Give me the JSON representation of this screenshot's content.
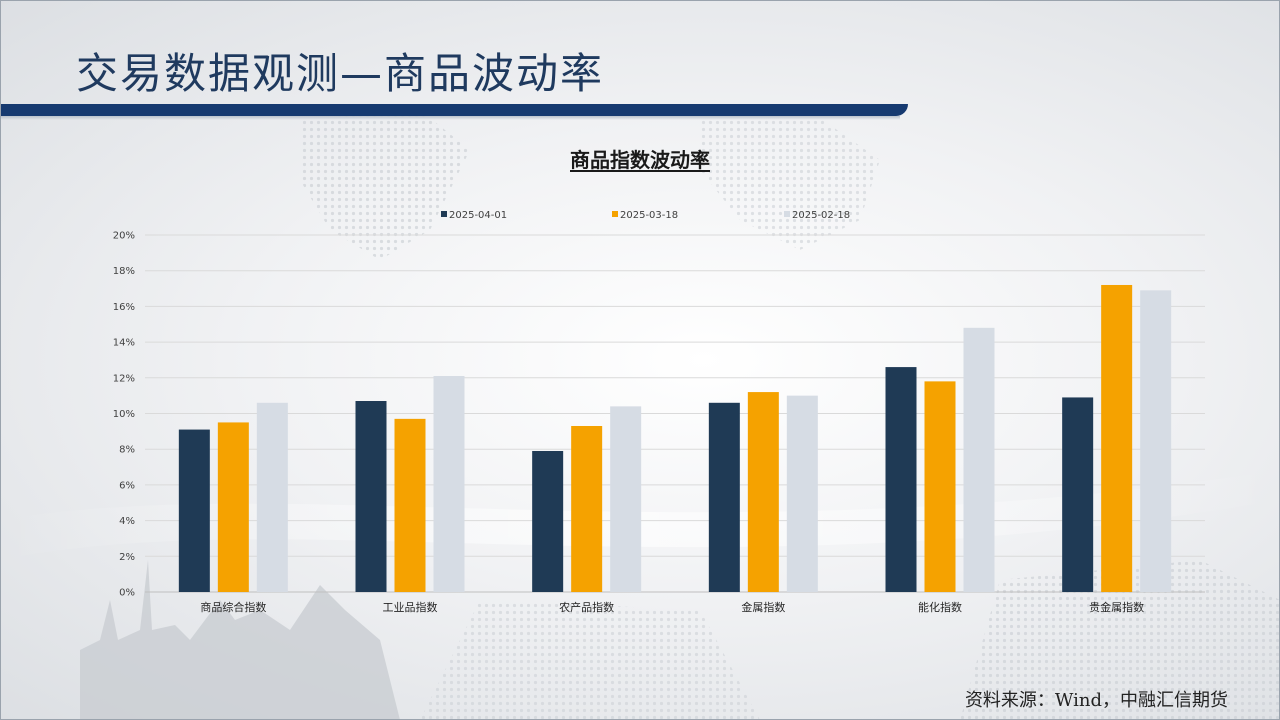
{
  "slide": {
    "title": "交易数据观测—商品波动率",
    "source": "资料来源：Wind，中融汇信期货"
  },
  "chart_data": {
    "type": "bar",
    "title": "商品指数波动率",
    "categories": [
      "商品综合指数",
      "工业品指数",
      "农产品指数",
      "金属指数",
      "能化指数",
      "贵金属指数"
    ],
    "series": [
      {
        "name": "2025-04-01",
        "color": "#1f3a55",
        "values": [
          9.1,
          10.7,
          7.9,
          10.6,
          12.6,
          10.9
        ]
      },
      {
        "name": "2025-03-18",
        "color": "#f5a200",
        "values": [
          9.5,
          9.7,
          9.3,
          11.2,
          11.8,
          17.2
        ]
      },
      {
        "name": "2025-02-18",
        "color": "#d6dce4",
        "values": [
          10.6,
          12.1,
          10.4,
          11.0,
          14.8,
          16.9
        ]
      }
    ],
    "yticks": [
      "0%",
      "2%",
      "4%",
      "6%",
      "8%",
      "10%",
      "12%",
      "14%",
      "16%",
      "18%",
      "20%"
    ],
    "ylim": [
      0,
      20
    ],
    "grid": true,
    "legend_position": "top"
  }
}
